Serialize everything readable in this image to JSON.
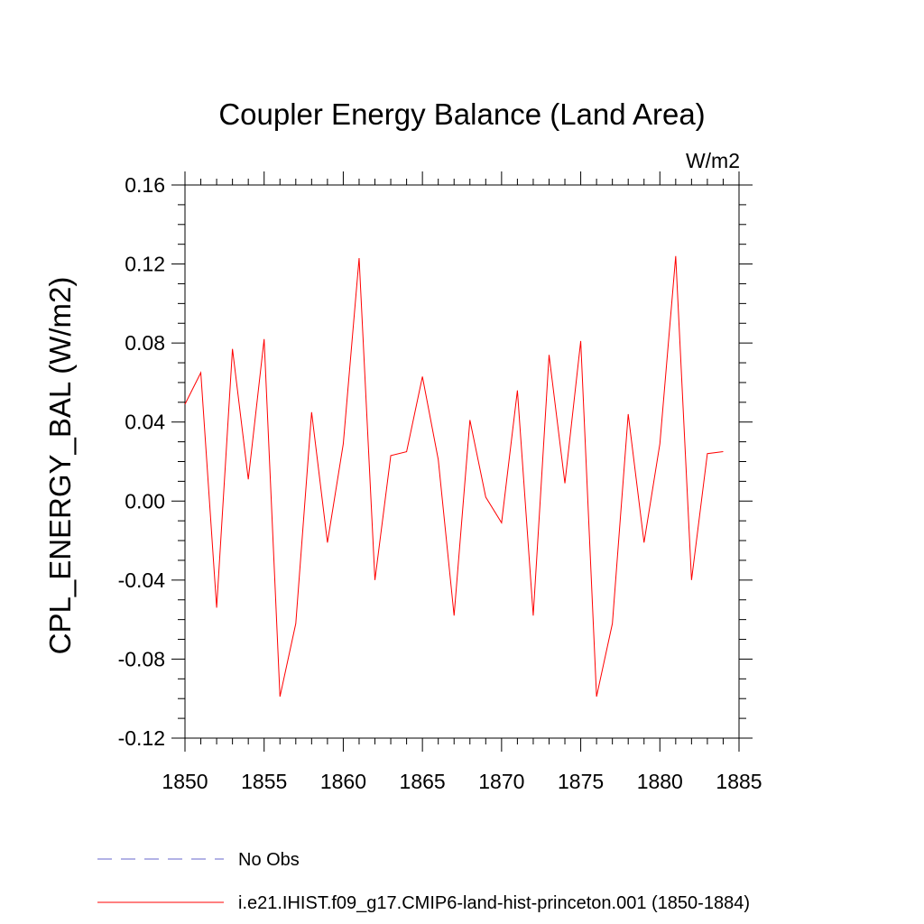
{
  "chart_data": {
    "type": "line",
    "title": "Coupler Energy Balance (Land Area)",
    "units_label": "W/m2",
    "xlabel": "",
    "ylabel": "CPL_ENERGY_BAL  (W/m2)",
    "xlim": [
      1850,
      1885
    ],
    "ylim": [
      -0.12,
      0.16
    ],
    "x_ticks": [
      1850,
      1855,
      1860,
      1865,
      1870,
      1875,
      1880,
      1885
    ],
    "x_tick_labels": [
      "1850",
      "1855",
      "1860",
      "1865",
      "1870",
      "1875",
      "1880",
      "1885"
    ],
    "y_ticks": [
      -0.12,
      -0.08,
      -0.04,
      0.0,
      0.04,
      0.08,
      0.12,
      0.16
    ],
    "y_tick_labels": [
      "-0.12",
      "-0.08",
      "-0.04",
      "0.00",
      "0.04",
      "0.08",
      "0.12",
      "0.16"
    ],
    "grid": false,
    "legend_placement": "bottom",
    "series": [
      {
        "name": "i.e21.IHIST.f09_g17.CMIP6-land-hist-princeton.001 (1850-1884)",
        "color": "#ff0000",
        "style": "solid",
        "x": [
          1850,
          1851,
          1852,
          1853,
          1854,
          1855,
          1856,
          1857,
          1858,
          1859,
          1860,
          1861,
          1862,
          1863,
          1864,
          1865,
          1866,
          1867,
          1868,
          1869,
          1870,
          1871,
          1872,
          1873,
          1874,
          1875,
          1876,
          1877,
          1878,
          1879,
          1880,
          1881,
          1882,
          1883,
          1884
        ],
        "y": [
          0.049,
          0.065,
          -0.054,
          0.077,
          0.011,
          0.082,
          -0.099,
          -0.062,
          0.045,
          -0.021,
          0.029,
          0.123,
          -0.04,
          0.023,
          0.025,
          0.063,
          0.021,
          -0.058,
          0.041,
          0.002,
          -0.011,
          0.056,
          -0.058,
          0.074,
          0.009,
          0.081,
          -0.099,
          -0.062,
          0.044,
          -0.021,
          0.029,
          0.124,
          -0.04,
          0.024,
          0.025
        ]
      },
      {
        "name": "No Obs",
        "color": "#6666cc",
        "style": "dashed",
        "x": [],
        "y": []
      }
    ]
  }
}
